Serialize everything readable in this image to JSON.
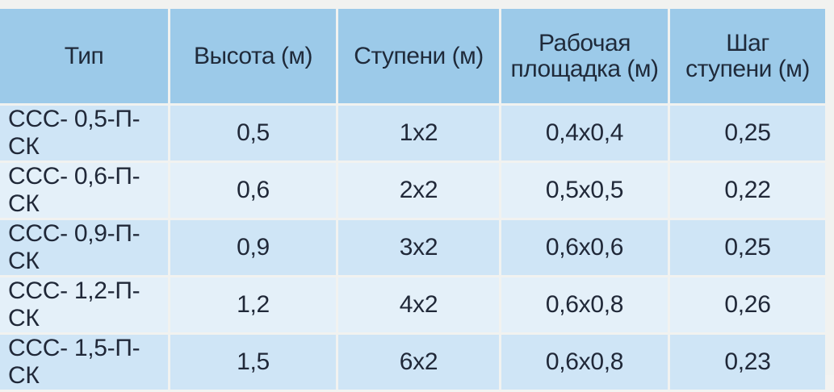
{
  "table": {
    "headers": [
      {
        "line1": "Тип",
        "line2": ""
      },
      {
        "line1": "Высота (м)",
        "line2": ""
      },
      {
        "line1": "Ступени (м)",
        "line2": ""
      },
      {
        "line1": "Рабочая",
        "line2": "площадка (м)"
      },
      {
        "line1": "Шаг",
        "line2": "ступени (м)"
      }
    ],
    "rows": [
      {
        "type": "ССС- 0,5-П-СК",
        "height": "0,5",
        "steps": "1х2",
        "platform": "0,4х0,4",
        "step_pitch": "0,25"
      },
      {
        "type": "ССС- 0,6-П-СК",
        "height": "0,6",
        "steps": "2х2",
        "platform": "0,5х0,5",
        "step_pitch": "0,22"
      },
      {
        "type": "ССС- 0,9-П-СК",
        "height": "0,9",
        "steps": "3х2",
        "platform": "0,6х0,6",
        "step_pitch": "0,25"
      },
      {
        "type": "ССС- 1,2-П-СК",
        "height": "1,2",
        "steps": "4х2",
        "platform": "0,6х0,8",
        "step_pitch": "0,26"
      },
      {
        "type": "ССС- 1,5-П-СК",
        "height": "1,5",
        "steps": "6х2",
        "platform": "0,6х0,8",
        "step_pitch": "0,23"
      }
    ]
  },
  "colors": {
    "header_bg": "#9ccae9",
    "row_odd_bg": "#cfe5f6",
    "row_even_bg": "#e4f0f9",
    "text": "#202838"
  }
}
